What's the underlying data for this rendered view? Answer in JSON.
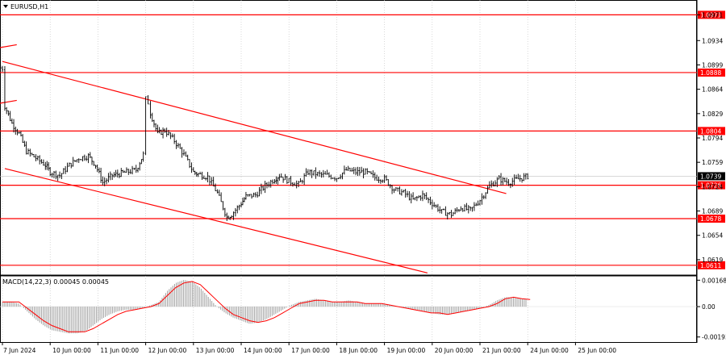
{
  "symbol_label": "EURUSD,H1",
  "macd_label": "MACD(14,22,3) 0.00045 0.00045",
  "colors": {
    "level": "#ff0000",
    "current_price_bg": "#000000",
    "candles": "#000000",
    "grid": "#c0c0c0",
    "macd_hist": "#a0a0a0",
    "macd_signal": "#ff0000"
  },
  "chart_data": {
    "type": "candlestick",
    "symbol": "EURUSD",
    "timeframe": "H1",
    "y_range": [
      1.0598,
      1.099
    ],
    "price_ticks": [
      "1.0971",
      "1.0934",
      "1.0899",
      "1.0864",
      "1.0829",
      "1.0794",
      "1.0759",
      "1.0724",
      "1.0689",
      "1.0654",
      "1.0619"
    ],
    "horizontal_levels": [
      {
        "label": "1.0971",
        "value": 1.0971
      },
      {
        "label": "1.0888",
        "value": 1.0888
      },
      {
        "label": "1.0804",
        "value": 1.0804
      },
      {
        "label": "1.0726",
        "value": 1.0726
      },
      {
        "label": "1.0678",
        "value": 1.0678
      },
      {
        "label": "1.0611",
        "value": 1.0611
      }
    ],
    "current_price": {
      "label": "1.0739",
      "value": 1.0739
    },
    "x_labels": [
      "7 Jun 2024",
      "10 Jun 00:00",
      "11 Jun 00:00",
      "12 Jun 00:00",
      "13 Jun 00:00",
      "14 Jun 00:00",
      "17 Jun 00:00",
      "18 Jun 00:00",
      "19 Jun 00:00",
      "20 Jun 00:00",
      "21 Jun 00:00",
      "24 Jun 00:00",
      "25 Jun 00:00"
    ],
    "trend_channel": {
      "upper": [
        [
          0,
          1.0904
        ],
        [
          10.55,
          1.0714
        ]
      ],
      "lower": [
        [
          0.05,
          1.075
        ],
        [
          8.9,
          1.06
        ]
      ],
      "parallel_segments": [
        [
          [
            -0.55,
            1.0918
          ],
          [
            0.3,
            1.0928
          ]
        ],
        [
          [
            -0.55,
            1.0838
          ],
          [
            0.3,
            1.0848
          ]
        ]
      ]
    },
    "series": [
      {
        "name": "price",
        "x": [
          -0.6,
          -0.2,
          0,
          0.05,
          0.2,
          0.35,
          0.5,
          0.7,
          0.9,
          1.0,
          1.2,
          1.4,
          1.6,
          1.8,
          1.95,
          2.1,
          2.3,
          2.6,
          2.8,
          2.95,
          3.0,
          3.05,
          3.1,
          3.25,
          3.4,
          3.6,
          3.8,
          4.0,
          4.1,
          4.3,
          4.5,
          4.7,
          4.8,
          5.0,
          5.1,
          5.3,
          5.5,
          5.7,
          5.8,
          6.0,
          6.2,
          6.4,
          6.6,
          6.8,
          7.0,
          7.2,
          7.4,
          7.6,
          7.8,
          8.0,
          8.2,
          8.4,
          8.6,
          8.8,
          9.0,
          9.2,
          9.4,
          9.6,
          9.8,
          10.0,
          10.2,
          10.4,
          10.6,
          10.8,
          11.0
        ],
        "y": [
          1.0895,
          1.0898,
          1.0894,
          1.084,
          1.0815,
          1.08,
          1.0775,
          1.0765,
          1.0755,
          1.0745,
          1.074,
          1.0755,
          1.0765,
          1.0768,
          1.0755,
          1.073,
          1.074,
          1.0745,
          1.0748,
          1.077,
          1.085,
          1.0845,
          1.083,
          1.08,
          1.0805,
          1.079,
          1.077,
          1.0745,
          1.0742,
          1.0738,
          1.0715,
          1.068,
          1.0684,
          1.07,
          1.071,
          1.0712,
          1.0725,
          1.0735,
          1.074,
          1.0732,
          1.0727,
          1.0745,
          1.0742,
          1.074,
          1.0737,
          1.0748,
          1.0745,
          1.0745,
          1.0737,
          1.0735,
          1.072,
          1.0715,
          1.0705,
          1.0712,
          1.07,
          1.0688,
          1.0684,
          1.0694,
          1.069,
          1.0705,
          1.0725,
          1.0735,
          1.073,
          1.0735,
          1.0739
        ]
      }
    ],
    "macd": {
      "ylabel_ticks": [
        "0.00168",
        "0.00",
        "-0.00193"
      ],
      "y_range": [
        -0.00215,
        0.00185
      ],
      "values": [
        0.0003,
        0.0003,
        0.0002,
        -0.0003,
        -0.0008,
        -0.0012,
        -0.0015,
        -0.0016,
        -0.0017,
        -0.0017,
        -0.0016,
        -0.0012,
        -0.0008,
        -0.0005,
        -0.0003,
        -0.0002,
        -0.0002,
        -0.0001,
        0.0001,
        0.0003,
        0.001,
        0.0015,
        0.0017,
        0.0016,
        0.0012,
        0.0006,
        0.0,
        -0.0004,
        -0.0007,
        -0.0009,
        -0.0011,
        -0.001,
        -0.0008,
        -0.0005,
        -0.0002,
        0.0001,
        0.0003,
        0.0004,
        0.0005,
        0.0004,
        0.0003,
        0.0003,
        0.0004,
        0.0003,
        0.0002,
        0.0002,
        0.0002,
        0.0001,
        0.0,
        -0.0001,
        -0.0002,
        -0.0003,
        -0.0004,
        -0.0005,
        -0.0005,
        -0.0004,
        -0.0003,
        -0.0002,
        -0.0001,
        0.0001,
        0.0004,
        0.0006,
        0.0006,
        0.0005,
        0.00045
      ],
      "signal": [
        0.0003,
        0.0003,
        0.0003,
        -0.0001,
        -0.0005,
        -0.0009,
        -0.0012,
        -0.0014,
        -0.0016,
        -0.0016,
        -0.0016,
        -0.0014,
        -0.0011,
        -0.0008,
        -0.0005,
        -0.0003,
        -0.0002,
        -0.0001,
        0.0,
        0.0002,
        0.0007,
        0.0012,
        0.0015,
        0.0016,
        0.0014,
        0.0009,
        0.0004,
        -0.0001,
        -0.0005,
        -0.0007,
        -0.0009,
        -0.001,
        -0.0009,
        -0.0007,
        -0.0004,
        -0.0001,
        0.0002,
        0.0003,
        0.0004,
        0.0004,
        0.0003,
        0.0003,
        0.0003,
        0.0003,
        0.0002,
        0.0002,
        0.0002,
        0.0001,
        0.0,
        -0.0001,
        -0.0002,
        -0.0003,
        -0.0004,
        -0.0004,
        -0.0005,
        -0.0004,
        -0.0003,
        -0.0002,
        -0.0001,
        0.0,
        0.0002,
        0.0005,
        0.0006,
        0.0005,
        0.00045
      ]
    }
  }
}
